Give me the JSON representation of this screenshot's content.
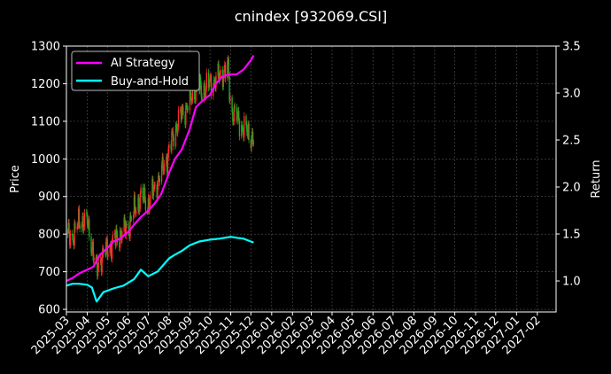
{
  "chart_data": {
    "type": "line",
    "title": "cnindex [932069.CSI]",
    "xlabel": "",
    "ylabel_left": "Price",
    "ylabel_right": "Return",
    "ylim_left": [
      593,
      1300
    ],
    "ylim_right": [
      0.67,
      3.5
    ],
    "xlim": [
      "2025-03-01",
      "2027-03-01"
    ],
    "yticks_left": [
      "600",
      "700",
      "800",
      "900",
      "1000",
      "1100",
      "1200",
      "1300"
    ],
    "yticks_right": [
      "1.0",
      "1.5",
      "2.0",
      "2.5",
      "3.0",
      "3.5"
    ],
    "xticks": [
      "2025-03",
      "2025-04",
      "2025-05",
      "2025-06",
      "2025-07",
      "2025-08",
      "2025-09",
      "2025-10",
      "2025-11",
      "2025-12",
      "2026-01",
      "2026-02",
      "2026-03",
      "2026-04",
      "2026-05",
      "2026-06",
      "2026-07",
      "2026-08",
      "2026-09",
      "2026-10",
      "2026-11",
      "2026-12",
      "2027-01",
      "2027-02"
    ],
    "grid": true,
    "legend_position": "top-left",
    "colors": {
      "background": "#000000",
      "ai_strategy": "#ff00ff",
      "buy_and_hold": "#00ffff",
      "candle_up": "#ff2a2a",
      "candle_down": "#1fa81f",
      "grid": "#555555"
    },
    "series": [
      {
        "name": "AI Strategy",
        "axis": "right",
        "x": [
          "2025-03-01",
          "2025-03-10",
          "2025-03-20",
          "2025-04-01",
          "2025-04-10",
          "2025-04-20",
          "2025-05-01",
          "2025-05-10",
          "2025-05-20",
          "2025-06-01",
          "2025-06-10",
          "2025-06-20",
          "2025-07-01",
          "2025-07-10",
          "2025-07-20",
          "2025-08-01",
          "2025-08-10",
          "2025-08-20",
          "2025-09-01",
          "2025-09-10",
          "2025-09-20",
          "2025-10-01",
          "2025-10-10",
          "2025-10-20",
          "2025-11-01",
          "2025-11-10",
          "2025-11-20",
          "2025-12-01",
          "2025-12-05"
        ],
        "values": [
          1.0,
          1.03,
          1.08,
          1.12,
          1.15,
          1.28,
          1.35,
          1.42,
          1.45,
          1.52,
          1.6,
          1.68,
          1.75,
          1.82,
          1.92,
          2.15,
          2.3,
          2.4,
          2.62,
          2.85,
          2.92,
          2.98,
          3.1,
          3.18,
          3.2,
          3.2,
          3.25,
          3.35,
          3.4
        ]
      },
      {
        "name": "Buy-and-Hold",
        "axis": "right",
        "x": [
          "2025-03-01",
          "2025-03-10",
          "2025-03-20",
          "2025-04-01",
          "2025-04-08",
          "2025-04-15",
          "2025-04-25",
          "2025-05-10",
          "2025-05-25",
          "2025-06-10",
          "2025-06-20",
          "2025-07-01",
          "2025-07-15",
          "2025-08-01",
          "2025-08-10",
          "2025-08-20",
          "2025-09-01",
          "2025-09-15",
          "2025-10-01",
          "2025-10-15",
          "2025-11-01",
          "2025-11-10",
          "2025-11-20",
          "2025-12-01",
          "2025-12-05"
        ],
        "values": [
          0.95,
          0.97,
          0.97,
          0.96,
          0.93,
          0.78,
          0.88,
          0.92,
          0.95,
          1.02,
          1.12,
          1.05,
          1.1,
          1.24,
          1.28,
          1.32,
          1.38,
          1.42,
          1.44,
          1.45,
          1.47,
          1.46,
          1.45,
          1.42,
          1.41
        ]
      },
      {
        "name": "price",
        "axis": "left",
        "x": [
          "2025-03-01",
          "2025-03-08",
          "2025-03-15",
          "2025-03-22",
          "2025-04-01",
          "2025-04-08",
          "2025-04-15",
          "2025-04-22",
          "2025-05-01",
          "2025-05-10",
          "2025-05-20",
          "2025-06-01",
          "2025-06-10",
          "2025-06-20",
          "2025-07-01",
          "2025-07-10",
          "2025-07-20",
          "2025-08-01",
          "2025-08-10",
          "2025-08-20",
          "2025-09-01",
          "2025-09-10",
          "2025-09-20",
          "2025-10-01",
          "2025-10-10",
          "2025-10-20",
          "2025-10-28",
          "2025-11-01",
          "2025-11-10",
          "2025-11-20",
          "2025-12-01",
          "2025-12-05"
        ],
        "values": [
          800,
          790,
          810,
          840,
          830,
          770,
          700,
          740,
          760,
          780,
          800,
          820,
          860,
          900,
          880,
          920,
          960,
          1020,
          1080,
          1120,
          1150,
          1190,
          1180,
          1200,
          1210,
          1230,
          1240,
          1130,
          1110,
          1080,
          1060,
          1050
        ]
      }
    ]
  }
}
